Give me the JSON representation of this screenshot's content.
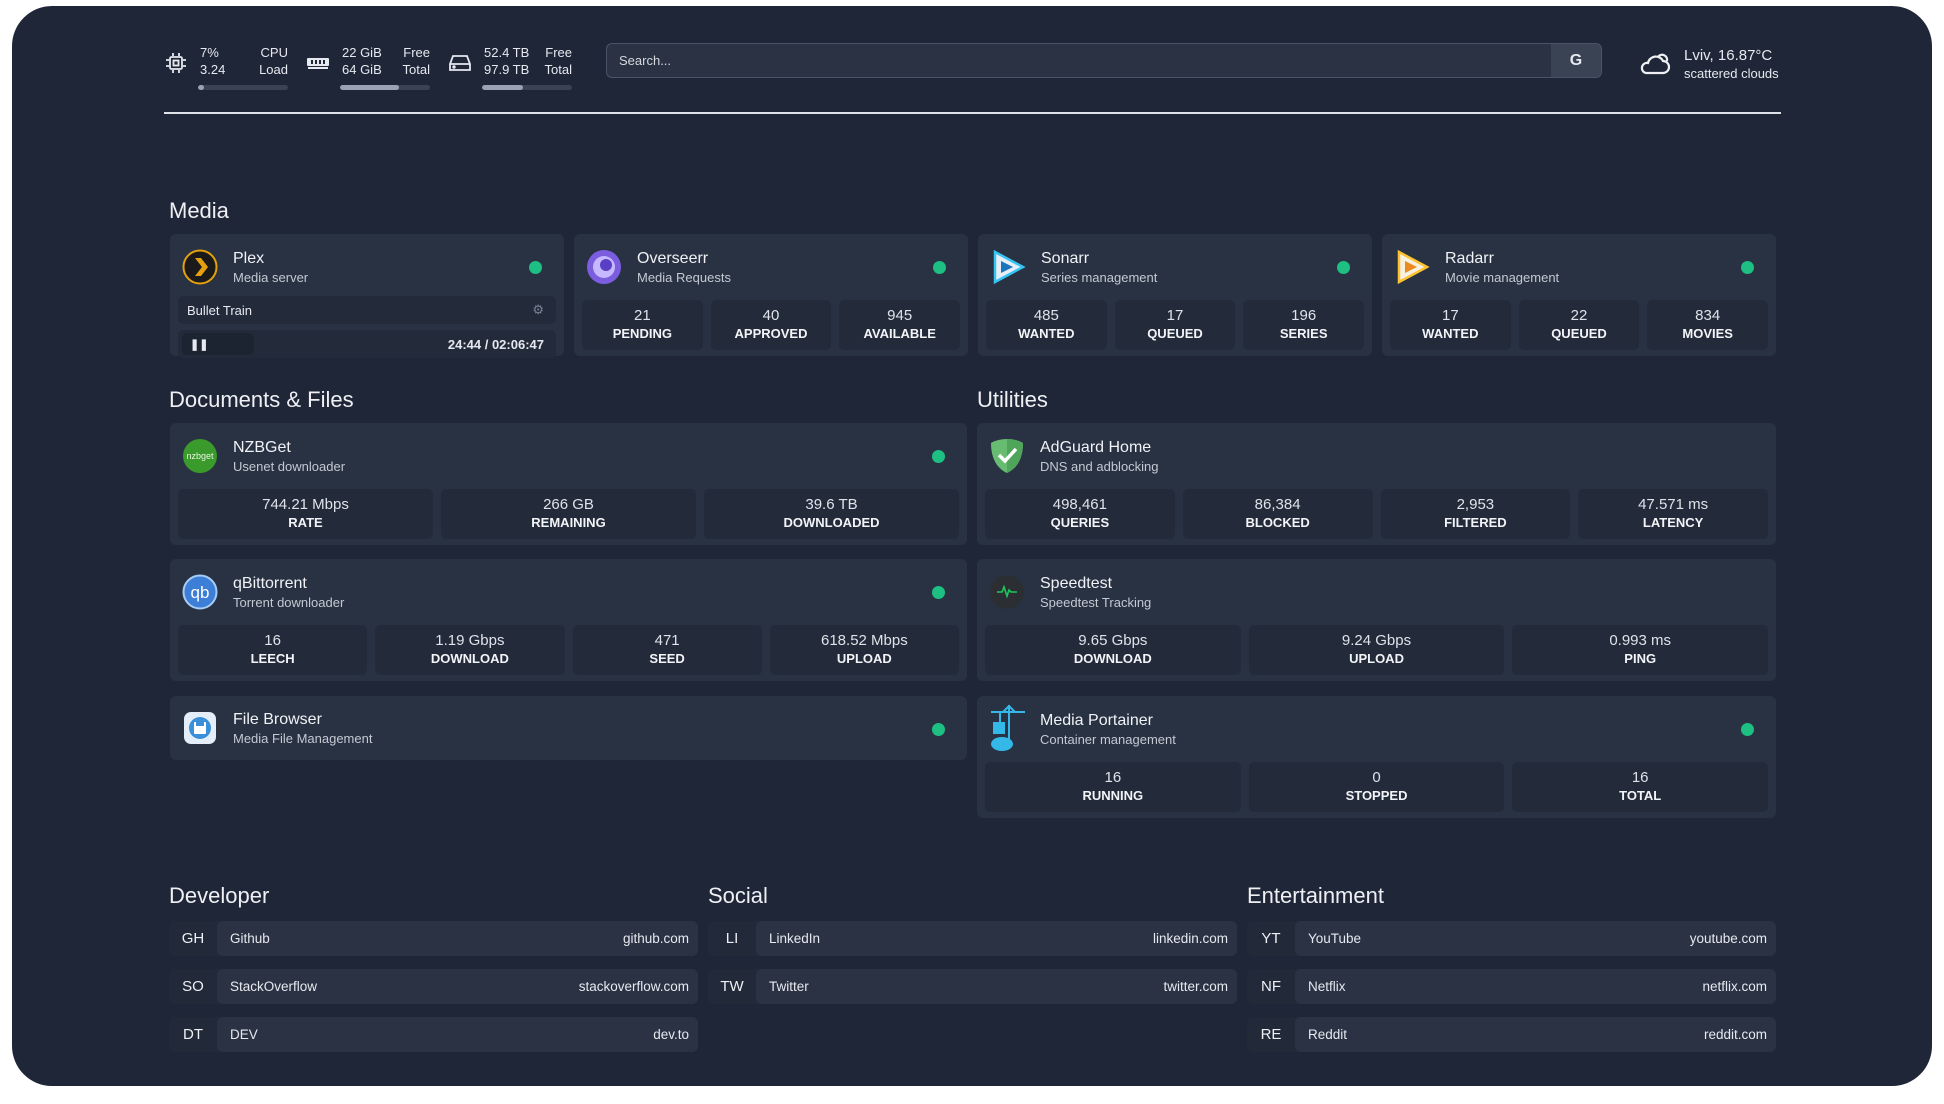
{
  "header": {
    "cpu": {
      "icon": "cpu-icon",
      "value1": "7%",
      "value2": "3.24",
      "label1": "CPU",
      "label2": "Load",
      "fill": 0.07
    },
    "ram": {
      "icon": "memory-icon",
      "value1": "22 GiB",
      "value2": "64 GiB",
      "label1": "Free",
      "label2": "Total",
      "fill": 0.66
    },
    "disk": {
      "icon": "hard-drive-icon",
      "value1": "52.4 TB",
      "value2": "97.9 TB",
      "label1": "Free",
      "label2": "Total",
      "fill": 0.46
    },
    "search": {
      "placeholder": "Search...",
      "engine_button": "G"
    },
    "weather": {
      "icon": "cloud-sun-icon",
      "location_temp": "Lviv, 16.87°C",
      "description": "scattered clouds"
    }
  },
  "colors": {
    "background": "#1f2637",
    "card": "#293243",
    "status_online": "#1dbf83"
  },
  "media": {
    "title": "Media",
    "services": [
      {
        "name": "Plex",
        "description": "Media server",
        "now_playing": {
          "title": "Bullet Train",
          "position": "24:44",
          "duration": "02:06:47",
          "state": "paused"
        }
      },
      {
        "name": "Overseerr",
        "description": "Media Requests",
        "stats": [
          {
            "value": "21",
            "label": "Pending"
          },
          {
            "value": "40",
            "label": "Approved"
          },
          {
            "value": "945",
            "label": "Available"
          }
        ]
      },
      {
        "name": "Sonarr",
        "description": "Series management",
        "stats": [
          {
            "value": "485",
            "label": "Wanted"
          },
          {
            "value": "17",
            "label": "Queued"
          },
          {
            "value": "196",
            "label": "Series"
          }
        ]
      },
      {
        "name": "Radarr",
        "description": "Movie management",
        "stats": [
          {
            "value": "17",
            "label": "Wanted"
          },
          {
            "value": "22",
            "label": "Queued"
          },
          {
            "value": "834",
            "label": "Movies"
          }
        ]
      }
    ]
  },
  "documents": {
    "title": "Documents & Files",
    "services": [
      {
        "name": "NZBGet",
        "description": "Usenet downloader",
        "icon_text": "nzbget",
        "stats": [
          {
            "value": "744.21 Mbps",
            "label": "Rate"
          },
          {
            "value": "266 GB",
            "label": "Remaining"
          },
          {
            "value": "39.6 TB",
            "label": "Downloaded"
          }
        ]
      },
      {
        "name": "qBittorrent",
        "description": "Torrent downloader",
        "icon_text": "qb",
        "stats": [
          {
            "value": "16",
            "label": "Leech"
          },
          {
            "value": "1.19 Gbps",
            "label": "Download"
          },
          {
            "value": "471",
            "label": "Seed"
          },
          {
            "value": "618.52 Mbps",
            "label": "Upload"
          }
        ]
      },
      {
        "name": "File Browser",
        "description": "Media File Management"
      }
    ]
  },
  "utilities": {
    "title": "Utilities",
    "services": [
      {
        "name": "AdGuard Home",
        "description": "DNS and adblocking",
        "stats": [
          {
            "value": "498,461",
            "label": "Queries"
          },
          {
            "value": "86,384",
            "label": "Blocked"
          },
          {
            "value": "2,953",
            "label": "Filtered"
          },
          {
            "value": "47.571 ms",
            "label": "Latency"
          }
        ]
      },
      {
        "name": "Speedtest",
        "description": "Speedtest Tracking",
        "stats": [
          {
            "value": "9.65 Gbps",
            "label": "Download"
          },
          {
            "value": "9.24 Gbps",
            "label": "Upload"
          },
          {
            "value": "0.993 ms",
            "label": "Ping"
          }
        ]
      },
      {
        "name": "Media Portainer",
        "description": "Container management",
        "stats": [
          {
            "value": "16",
            "label": "Running"
          },
          {
            "value": "0",
            "label": "Stopped"
          },
          {
            "value": "16",
            "label": "Total"
          }
        ]
      }
    ]
  },
  "bookmarks": [
    {
      "title": "Developer",
      "items": [
        {
          "abbr": "GH",
          "name": "Github",
          "url": "github.com"
        },
        {
          "abbr": "SO",
          "name": "StackOverflow",
          "url": "stackoverflow.com"
        },
        {
          "abbr": "DT",
          "name": "DEV",
          "url": "dev.to"
        }
      ]
    },
    {
      "title": "Social",
      "items": [
        {
          "abbr": "LI",
          "name": "LinkedIn",
          "url": "linkedin.com"
        },
        {
          "abbr": "TW",
          "name": "Twitter",
          "url": "twitter.com"
        }
      ]
    },
    {
      "title": "Entertainment",
      "items": [
        {
          "abbr": "YT",
          "name": "YouTube",
          "url": "youtube.com"
        },
        {
          "abbr": "NF",
          "name": "Netflix",
          "url": "netflix.com"
        },
        {
          "abbr": "RE",
          "name": "Reddit",
          "url": "reddit.com"
        }
      ]
    }
  ]
}
